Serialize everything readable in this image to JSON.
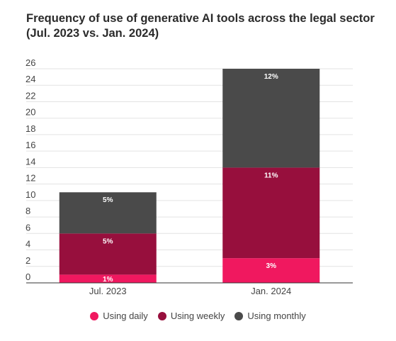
{
  "title_line1": "Frequency of use of generative AI tools across the legal sector",
  "title_line2": "(Jul. 2023 vs. Jan. 2024)",
  "chart_data": {
    "type": "bar",
    "stacked": true,
    "categories": [
      "Jul. 2023",
      "Jan. 2024"
    ],
    "series": [
      {
        "name": "Using daily",
        "values": [
          1,
          3
        ],
        "labels": [
          "1%",
          "3%"
        ],
        "color": "#f0185f"
      },
      {
        "name": "Using weekly",
        "values": [
          5,
          11
        ],
        "labels": [
          "5%",
          "11%"
        ],
        "color": "#970f3d"
      },
      {
        "name": "Using monthly",
        "values": [
          5,
          12
        ],
        "labels": [
          "5%",
          "12%"
        ],
        "color": "#4a4a4a"
      }
    ],
    "yticks": [
      0,
      2,
      4,
      6,
      8,
      10,
      12,
      14,
      16,
      18,
      20,
      22,
      24,
      26
    ],
    "ylim": [
      0,
      26
    ],
    "grid": true,
    "legend": "bottom"
  }
}
